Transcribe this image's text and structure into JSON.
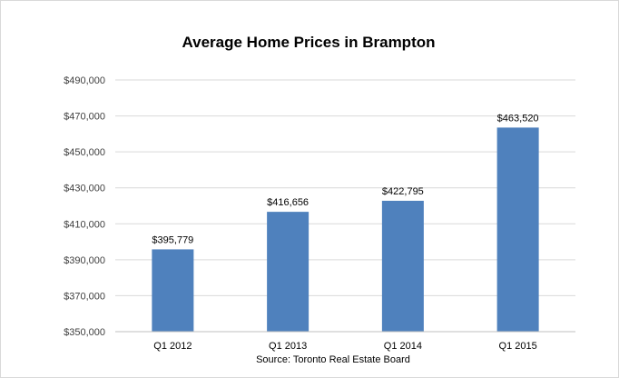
{
  "chart_data": {
    "type": "bar",
    "title": "Average Home Prices in Brampton",
    "xlabel": "Source: Toronto Real Estate Board",
    "ylabel": "",
    "categories": [
      "Q1 2012",
      "Q1 2013",
      "Q1 2014",
      "Q1 2015"
    ],
    "values": [
      395779,
      416656,
      422795,
      463520
    ],
    "value_labels": [
      "$395,779",
      "$416,656",
      "$422,795",
      "$463,520"
    ],
    "ylim": [
      350000,
      490000
    ],
    "yticks": [
      350000,
      370000,
      390000,
      410000,
      430000,
      450000,
      470000,
      490000
    ],
    "ytick_labels": [
      "$350,000",
      "$370,000",
      "$390,000",
      "$410,000",
      "$430,000",
      "$450,000",
      "$470,000",
      "$490,000"
    ],
    "grid": true,
    "legend": "none",
    "bar_color": "#4f81bd",
    "grid_color": "#d9d9d9"
  }
}
